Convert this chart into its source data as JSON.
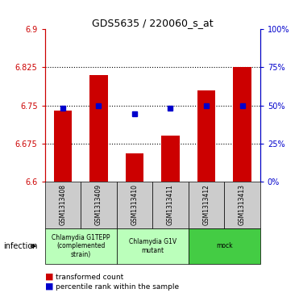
{
  "title": "GDS5635 / 220060_s_at",
  "samples": [
    "GSM1313408",
    "GSM1313409",
    "GSM1313410",
    "GSM1313411",
    "GSM1313412",
    "GSM1313413"
  ],
  "bar_bottom": [
    6.6,
    6.6,
    6.6,
    6.6,
    6.6,
    6.6
  ],
  "bar_top": [
    6.74,
    6.81,
    6.655,
    6.69,
    6.78,
    6.825
  ],
  "percentile_values": [
    6.745,
    6.75,
    6.733,
    6.745,
    6.75,
    6.75
  ],
  "ylim": [
    6.6,
    6.9
  ],
  "yticks_left": [
    6.6,
    6.675,
    6.75,
    6.825,
    6.9
  ],
  "yticks_right": [
    0,
    25,
    50,
    75,
    100
  ],
  "bar_color": "#cc0000",
  "percentile_color": "#0000cc",
  "grid_color": "#000000",
  "ax_left_color": "#cc0000",
  "ax_right_color": "#0000cc",
  "group_defs": [
    {
      "xstart": 0,
      "xend": 2,
      "label": "Chlamydia G1TEPP\n(complemented\nstrain)",
      "color": "#bbffbb"
    },
    {
      "xstart": 2,
      "xend": 4,
      "label": "Chlamydia G1V\nmutant",
      "color": "#bbffbb"
    },
    {
      "xstart": 4,
      "xend": 6,
      "label": "mock",
      "color": "#44cc44"
    }
  ],
  "infection_label": "infection",
  "legend_red_label": "transformed count",
  "legend_blue_label": "percentile rank within the sample",
  "bar_width": 0.5,
  "sample_box_color": "#cccccc",
  "fig_bg": "#ffffff"
}
